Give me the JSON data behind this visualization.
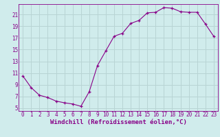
{
  "x": [
    0,
    1,
    2,
    3,
    4,
    5,
    6,
    7,
    8,
    9,
    10,
    11,
    12,
    13,
    14,
    15,
    16,
    17,
    18,
    19,
    20,
    21,
    22,
    23
  ],
  "y": [
    10.5,
    8.5,
    7.2,
    6.8,
    6.2,
    5.9,
    5.7,
    5.3,
    7.8,
    12.3,
    14.8,
    17.3,
    17.8,
    19.5,
    20.0,
    21.3,
    21.4,
    22.2,
    22.1,
    21.5,
    21.4,
    21.4,
    19.4,
    17.3
  ],
  "line_color": "#880088",
  "marker": "+",
  "bg_color": "#d0ecec",
  "grid_color": "#b8d4d4",
  "xlabel": "Windchill (Refroidissement éolien,°C)",
  "xlim": [
    -0.5,
    23.5
  ],
  "ylim": [
    4.5,
    22.8
  ],
  "yticks": [
    5,
    7,
    9,
    11,
    13,
    15,
    17,
    19,
    21
  ],
  "xticks": [
    0,
    1,
    2,
    3,
    4,
    5,
    6,
    7,
    8,
    9,
    10,
    11,
    12,
    13,
    14,
    15,
    16,
    17,
    18,
    19,
    20,
    21,
    22,
    23
  ],
  "tick_color": "#880088",
  "label_fontsize": 6.5,
  "tick_fontsize": 5.5
}
